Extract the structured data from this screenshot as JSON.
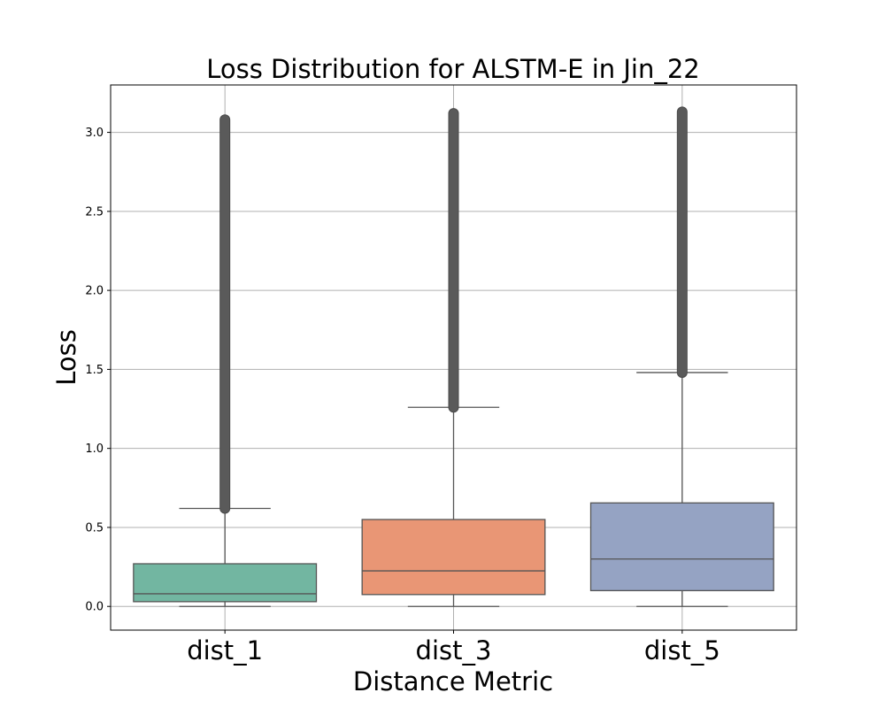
{
  "chart_data": {
    "type": "box",
    "title": "Loss Distribution for ALSTM-E in Jin_22",
    "xlabel": "Distance Metric",
    "ylabel": "Loss",
    "ylim": [
      -0.15,
      3.3
    ],
    "yticks": [
      0.0,
      0.5,
      1.0,
      1.5,
      2.0,
      2.5,
      3.0
    ],
    "ytick_labels": [
      "0.0",
      "0.5",
      "1.0",
      "1.5",
      "2.0",
      "2.5",
      "3.0"
    ],
    "grid": true,
    "categories": [
      "dist_1",
      "dist_3",
      "dist_5"
    ],
    "boxes": [
      {
        "label": "dist_1",
        "min": 0.0,
        "q1": 0.03,
        "median": 0.08,
        "q3": 0.27,
        "whisker_high": 0.62,
        "outliers_range": [
          0.62,
          3.08
        ],
        "color": "#72b6a1"
      },
      {
        "label": "dist_3",
        "min": 0.0,
        "q1": 0.075,
        "median": 0.225,
        "q3": 0.55,
        "whisker_high": 1.26,
        "outliers_range": [
          1.26,
          3.12
        ],
        "color": "#e99675"
      },
      {
        "label": "dist_5",
        "min": 0.0,
        "q1": 0.1,
        "median": 0.3,
        "q3": 0.655,
        "whisker_high": 1.48,
        "outliers_range": [
          1.48,
          3.13
        ],
        "color": "#95a3c3"
      }
    ]
  }
}
